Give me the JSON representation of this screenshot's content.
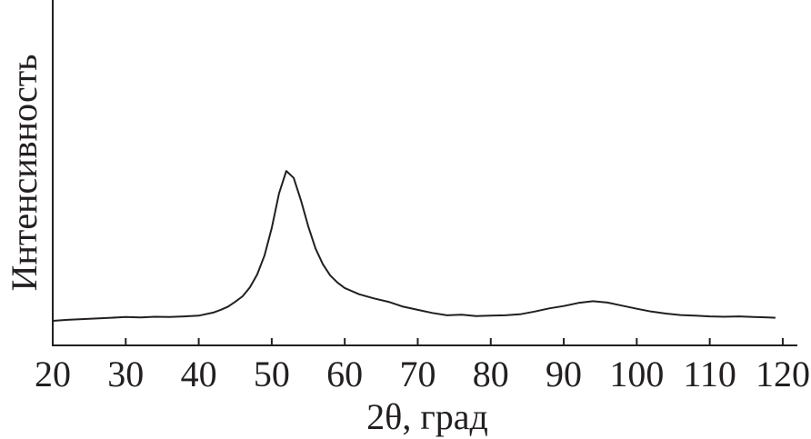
{
  "chart_data": {
    "type": "line",
    "xlabel": "2θ, град",
    "ylabel": "Интенсивность",
    "x": [
      20,
      22,
      24,
      26,
      28,
      30,
      32,
      34,
      36,
      38,
      40,
      42,
      43,
      44,
      45,
      46,
      47,
      48,
      49,
      50,
      51,
      52,
      53,
      54,
      55,
      56,
      57,
      58,
      59,
      60,
      62,
      64,
      66,
      68,
      70,
      72,
      74,
      76,
      78,
      80,
      82,
      84,
      86,
      88,
      90,
      92,
      94,
      96,
      98,
      100,
      102,
      104,
      106,
      108,
      110,
      112,
      114,
      116,
      118,
      119
    ],
    "series": [
      {
        "color": "#231f20",
        "values": [
          7.1,
          7.4,
          7.6,
          7.8,
          8.0,
          8.2,
          8.1,
          8.3,
          8.2,
          8.4,
          8.6,
          9.5,
          10.3,
          11.2,
          12.6,
          14.2,
          16.8,
          20.5,
          26,
          34,
          44,
          50.5,
          48.5,
          42,
          34.5,
          28,
          23.5,
          20.3,
          18.2,
          16.6,
          14.8,
          13.6,
          12.6,
          11.2,
          10.3,
          9.4,
          8.7,
          8.9,
          8.5,
          8.6,
          8.7,
          9.0,
          9.8,
          10.7,
          11.4,
          12.3,
          12.8,
          12.4,
          11.5,
          10.6,
          9.8,
          9.2,
          8.8,
          8.6,
          8.4,
          8.3,
          8.4,
          8.2,
          8.1,
          8.0
        ]
      }
    ],
    "xlim": [
      20,
      122
    ],
    "xticks": [
      20,
      30,
      40,
      50,
      60,
      70,
      80,
      90,
      100,
      110,
      120
    ],
    "ylim": [
      0,
      100
    ]
  }
}
